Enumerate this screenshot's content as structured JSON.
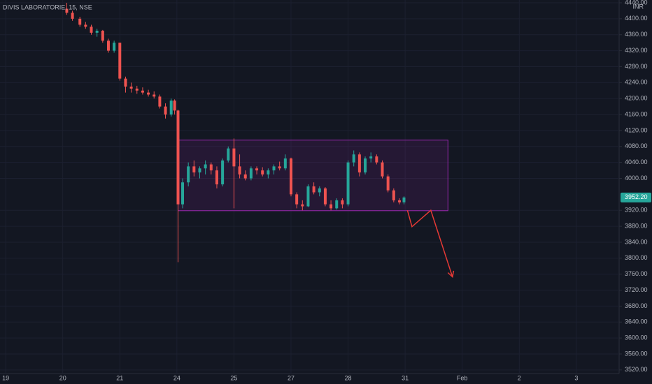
{
  "chart_data": {
    "type": "candlestick",
    "title": "DIVIS LABORATORIE, 15, NSE",
    "currency": "INR",
    "up_color": "#26a69a",
    "down_color": "#ef5350",
    "grid": true,
    "xlim": [
      -0.1,
      10.75
    ],
    "xticks": [
      {
        "value": 0,
        "label": "19"
      },
      {
        "value": 1,
        "label": "20"
      },
      {
        "value": 2,
        "label": "21"
      },
      {
        "value": 3,
        "label": "24"
      },
      {
        "value": 4,
        "label": "25"
      },
      {
        "value": 5,
        "label": "27"
      },
      {
        "value": 6,
        "label": "28"
      },
      {
        "value": 7,
        "label": "31"
      },
      {
        "value": 8,
        "label": "Feb"
      },
      {
        "value": 9,
        "label": "2"
      },
      {
        "value": 10,
        "label": "3"
      }
    ],
    "ylim": [
      3511,
      4447
    ],
    "yticks": [
      {
        "value": 3520,
        "label": "3520.00"
      },
      {
        "value": 3560,
        "label": "3560.00"
      },
      {
        "value": 3600,
        "label": "3600.00"
      },
      {
        "value": 3640,
        "label": "3640.00"
      },
      {
        "value": 3680,
        "label": "3680.00"
      },
      {
        "value": 3720,
        "label": "3720.00"
      },
      {
        "value": 3760,
        "label": "3760.00"
      },
      {
        "value": 3800,
        "label": "3800.00"
      },
      {
        "value": 3840,
        "label": "3840.00"
      },
      {
        "value": 3880,
        "label": "3880.00"
      },
      {
        "value": 3920,
        "label": "3920.00"
      },
      {
        "value": 4000,
        "label": "4000.00"
      },
      {
        "value": 4040,
        "label": "4040.00"
      },
      {
        "value": 4080,
        "label": "4080.00"
      },
      {
        "value": 4120,
        "label": "4120.00"
      },
      {
        "value": 4160,
        "label": "4160.00"
      },
      {
        "value": 4200,
        "label": "4200.00"
      },
      {
        "value": 4240,
        "label": "4240.00"
      },
      {
        "value": 4280,
        "label": "4280.00"
      },
      {
        "value": 4320,
        "label": "4320.00"
      },
      {
        "value": 4360,
        "label": "4360.00"
      },
      {
        "value": 4400,
        "label": "4400.00"
      },
      {
        "value": 4440,
        "label": "4440.00"
      }
    ],
    "last_price": {
      "value": 3952.2,
      "label": "3952.20"
    },
    "x": [
      1.07,
      1.17,
      1.3,
      1.4,
      1.5,
      1.6,
      1.7,
      1.8,
      1.9,
      2.0,
      2.1,
      2.2,
      2.3,
      2.4,
      2.5,
      2.6,
      2.7,
      2.8,
      2.9,
      2.96,
      3.02,
      3.1,
      3.2,
      3.3,
      3.4,
      3.5,
      3.6,
      3.7,
      3.8,
      3.9,
      4.0,
      4.1,
      4.2,
      4.3,
      4.4,
      4.5,
      4.6,
      4.7,
      4.8,
      4.9,
      5.0,
      5.1,
      5.2,
      5.3,
      5.4,
      5.5,
      5.6,
      5.7,
      5.8,
      5.9,
      6.0,
      6.1,
      6.2,
      6.3,
      6.4,
      6.5,
      6.6,
      6.7,
      6.8,
      6.9,
      6.98
    ],
    "open": [
      4425,
      4415,
      4400,
      4385,
      4380,
      4365,
      4370,
      4345,
      4320,
      4340,
      4250,
      4230,
      4225,
      4220,
      4215,
      4210,
      4205,
      4180,
      4160,
      4195,
      4170,
      3935,
      3990,
      4030,
      4015,
      4025,
      4035,
      4020,
      3985,
      4045,
      4075,
      4030,
      4010,
      4000,
      4025,
      4020,
      4010,
      4020,
      4030,
      4025,
      4050,
      3960,
      3935,
      3930,
      3980,
      3965,
      3975,
      3935,
      3925,
      3945,
      3935,
      4040,
      4060,
      4015,
      4050,
      4055,
      4040,
      4005,
      3970,
      3945,
      3940
    ],
    "high": [
      4440,
      4420,
      4405,
      4392,
      4385,
      4375,
      4372,
      4350,
      4345,
      4340,
      4255,
      4240,
      4232,
      4228,
      4222,
      4218,
      4210,
      4188,
      4200,
      4198,
      4172,
      4000,
      4040,
      4045,
      4030,
      4045,
      4040,
      4030,
      4050,
      4080,
      4100,
      4060,
      4020,
      4030,
      4030,
      4028,
      4025,
      4035,
      4042,
      4060,
      4052,
      3965,
      3945,
      3985,
      3990,
      3980,
      3978,
      3945,
      3950,
      3950,
      4045,
      4070,
      4065,
      4055,
      4065,
      4060,
      4045,
      4010,
      3975,
      3950,
      3955
    ],
    "low": [
      4410,
      4395,
      4380,
      4375,
      4360,
      4355,
      4340,
      4315,
      4315,
      4245,
      4215,
      4215,
      4212,
      4210,
      4205,
      4200,
      4175,
      4150,
      4155,
      4160,
      3790,
      3925,
      3980,
      4005,
      4000,
      4010,
      4010,
      3975,
      3980,
      4040,
      3925,
      4000,
      3995,
      3995,
      4010,
      4005,
      4000,
      4010,
      4020,
      4020,
      3955,
      3925,
      3920,
      3928,
      3960,
      3955,
      3930,
      3920,
      3922,
      3925,
      3930,
      4030,
      4005,
      4010,
      4040,
      4035,
      4000,
      3965,
      3940,
      3935,
      3935
    ],
    "close": [
      4415,
      4400,
      4385,
      4380,
      4365,
      4370,
      4345,
      4320,
      4340,
      4250,
      4230,
      4225,
      4220,
      4215,
      4210,
      4205,
      4180,
      4160,
      4195,
      4170,
      3935,
      3990,
      4030,
      4015,
      4025,
      4035,
      4020,
      3985,
      4045,
      4075,
      4030,
      4010,
      4000,
      4025,
      4020,
      4010,
      4020,
      4030,
      4025,
      4050,
      3960,
      3935,
      3930,
      3980,
      3965,
      3975,
      3935,
      3925,
      3945,
      3935,
      4040,
      4060,
      4015,
      4050,
      4055,
      4040,
      4005,
      3970,
      3945,
      3940,
      3952.2
    ],
    "drawings": [
      {
        "type": "rectangle",
        "color": "#9c27b0",
        "x": [
          3.02,
          7.75
        ],
        "y": [
          3919,
          4096
        ]
      },
      {
        "type": "arrow",
        "color": "#e53935",
        "x": [
          7.04,
          7.12,
          7.45,
          7.83
        ],
        "y": [
          3920,
          3879,
          3920,
          3753
        ]
      }
    ]
  }
}
